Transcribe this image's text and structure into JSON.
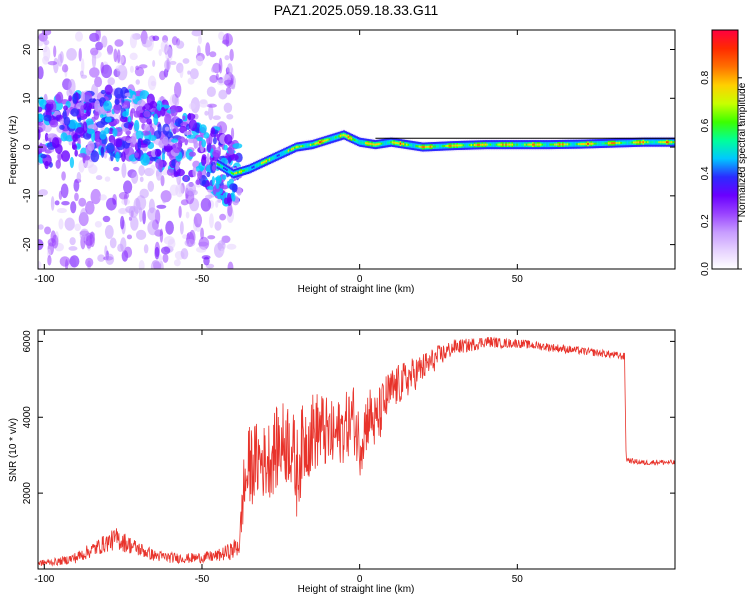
{
  "title": "PAZ1.2025.059.18.33.G11",
  "chart_data": [
    {
      "type": "heatmap",
      "xlabel": "Height of straight line (km)",
      "ylabel": "Frequency (Hz)",
      "xlim": [
        -102,
        100
      ],
      "ylim": [
        -25,
        24
      ],
      "xticks": [
        -100,
        -50,
        0,
        50
      ],
      "yticks": [
        -20,
        -10,
        0,
        10,
        20
      ],
      "colorbar": {
        "label": "Normalized spectral amplitude",
        "range": [
          0.0,
          1.0
        ],
        "ticks": [
          "0.0",
          "0.2",
          "0.4",
          "0.6",
          "0.8"
        ],
        "colors": [
          "#ffffff",
          "#e6d2ff",
          "#c79cff",
          "#9a44ff",
          "#6a00ff",
          "#2b2bff",
          "#00c8ff",
          "#00ff9a",
          "#3cff00",
          "#c8ff00",
          "#ffd000",
          "#ff7000",
          "#ff2a00",
          "#ff0040"
        ]
      },
      "ridge": {
        "x": [
          -100,
          -95,
          -90,
          -85,
          -80,
          -75,
          -70,
          -65,
          -60,
          -55,
          -50,
          -45,
          -40,
          -35,
          -30,
          -25,
          -20,
          -15,
          -10,
          -5,
          0,
          5,
          10,
          15,
          20,
          30,
          40,
          50,
          60,
          70,
          80,
          90,
          100
        ],
        "freq": [
          3,
          3.5,
          3.8,
          4.5,
          5,
          4.8,
          4.2,
          3,
          1.5,
          0.5,
          -1,
          -3.5,
          -5.5,
          -4.5,
          -3,
          -1.5,
          0,
          0.5,
          1.5,
          2.5,
          1,
          0.5,
          1,
          0.5,
          0,
          0.3,
          0.5,
          0.5,
          0.5,
          0.6,
          0.8,
          1,
          1
        ]
      }
    },
    {
      "type": "line",
      "xlabel": "Height of straight line (km)",
      "ylabel": "SNR (10 * v/v)",
      "xlim": [
        -102,
        100
      ],
      "ylim": [
        0,
        6300
      ],
      "xticks": [
        -100,
        -50,
        0,
        50
      ],
      "yticks": [
        2000,
        4000,
        6000
      ],
      "color": "#e8332b",
      "series": [
        {
          "x": [
            -102,
            -95,
            -90,
            -85,
            -80,
            -77,
            -72,
            -65,
            -60,
            -55,
            -50,
            -45,
            -40,
            -38,
            -37,
            -35,
            -32,
            -30,
            -28,
            -25,
            -22,
            -20,
            -18,
            -15,
            -12,
            -10,
            -8,
            -5,
            -2,
            0,
            3,
            5,
            8,
            10,
            15,
            20,
            25,
            30,
            35,
            40,
            45,
            50,
            55,
            60,
            65,
            70,
            75,
            80,
            84,
            84.5,
            86,
            90,
            95,
            100
          ],
          "y": [
            150,
            200,
            300,
            500,
            700,
            800,
            600,
            350,
            300,
            280,
            300,
            350,
            500,
            700,
            2000,
            2700,
            2900,
            2800,
            3000,
            3300,
            3400,
            2500,
            3300,
            3600,
            3700,
            3500,
            3500,
            3700,
            4000,
            3300,
            4100,
            3800,
            4400,
            4700,
            5000,
            5300,
            5600,
            5850,
            5900,
            6000,
            5950,
            5950,
            5900,
            5850,
            5800,
            5750,
            5700,
            5650,
            5600,
            2900,
            2850,
            2800,
            2820,
            2800
          ],
          "noise": [
            80,
            100,
            150,
            200,
            250,
            300,
            220,
            150,
            140,
            130,
            140,
            160,
            250,
            400,
            900,
            1100,
            1000,
            1000,
            1100,
            1100,
            1200,
            1200,
            1100,
            1100,
            1000,
            1000,
            900,
            900,
            900,
            900,
            800,
            800,
            700,
            600,
            500,
            400,
            300,
            200,
            180,
            150,
            130,
            120,
            110,
            110,
            110,
            100,
            100,
            100,
            100,
            80,
            70,
            70,
            70,
            70
          ]
        }
      ]
    }
  ]
}
